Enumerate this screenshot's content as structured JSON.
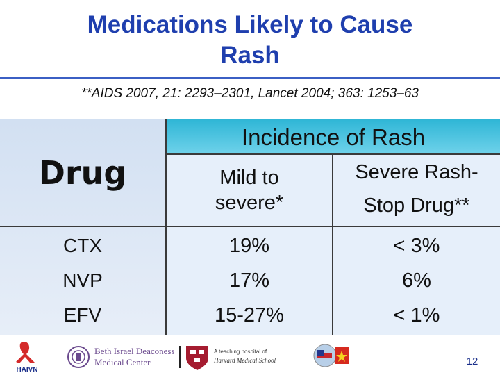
{
  "title": {
    "line1": "Medications Likely to Cause",
    "line2": "Rash"
  },
  "citation": "**AIDS 2007, 21: 2293–2301, Lancet 2004; 363: 1253–63",
  "table": {
    "drug_header": "Drug",
    "incidence_header": "Incidence of Rash",
    "mild_header": {
      "line1": "Mild to",
      "line2": "severe*"
    },
    "severe_header": {
      "line1": "Severe Rash-",
      "line2": "Stop Drug**"
    },
    "rows": [
      {
        "drug": "CTX",
        "mild": "19%",
        "severe": "< 3%"
      },
      {
        "drug": "NVP",
        "mild": "17%",
        "severe": "6%"
      },
      {
        "drug": "EFV",
        "mild": "15-27%",
        "severe": "< 1%"
      }
    ]
  },
  "footer": {
    "logo_haivn": "HAIVN",
    "logo_bidmc_line1": "Beth Israel Deaconess",
    "logo_bidmc_line2": "Medical Center",
    "logo_harvard_line1": "A teaching hospital of",
    "logo_harvard_line2": "Harvard Medical School",
    "page_number": "12"
  }
}
